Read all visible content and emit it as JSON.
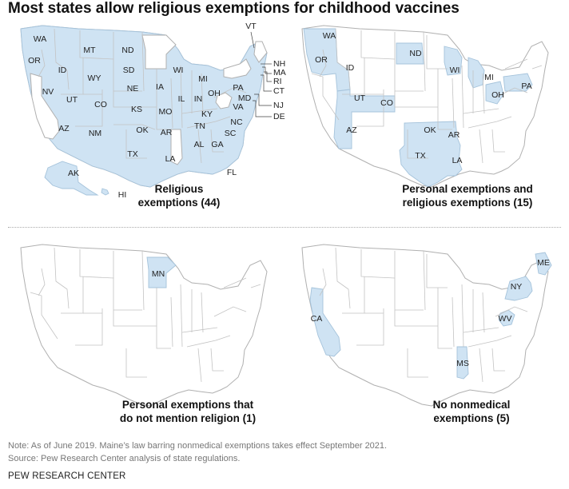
{
  "title": "Most states allow religious exemptions for childhood vaccines",
  "panels": [
    {
      "caption_line1": "Religious",
      "caption_line2": "exemptions (44)",
      "states": [
        "WA",
        "OR",
        "ID",
        "MT",
        "ND",
        "SD",
        "WY",
        "NE",
        "NV",
        "UT",
        "CO",
        "KS",
        "AZ",
        "NM",
        "OK",
        "TX",
        "IA",
        "MO",
        "AR",
        "LA",
        "WI",
        "MI",
        "IL",
        "IN",
        "OH",
        "KY",
        "TN",
        "AL",
        "GA",
        "FL",
        "SC",
        "NC",
        "VA",
        "PA",
        "MD",
        "NH",
        "MA",
        "RI",
        "CT",
        "NJ",
        "DE",
        "VT",
        "AK",
        "HI"
      ]
    },
    {
      "caption_line1": "Personal exemptions and",
      "caption_line2": "religious exemptions (15)",
      "states": [
        "WA",
        "OR",
        "ID",
        "UT",
        "CO",
        "AZ",
        "ND",
        "OK",
        "TX",
        "AR",
        "LA",
        "WI",
        "MI",
        "OH",
        "PA"
      ]
    },
    {
      "caption_line1": "Personal exemptions that",
      "caption_line2": "do not mention religion (1)",
      "states": [
        "MN"
      ]
    },
    {
      "caption_line1": "No nonmedical",
      "caption_line2": "exemptions (5)",
      "states": [
        "CA",
        "NY",
        "ME",
        "WV",
        "MS"
      ]
    }
  ],
  "note": "Note: As of June 2019. Maine’s law barring nonmedical exemptions takes effect September 2021.",
  "source": "Source: Pew Research Center analysis of state regulations.",
  "credit": "PEW RESEARCH CENTER",
  "colors": {
    "highlight": "#cfe3f3",
    "border": "#a5c3db",
    "land": "#ffffff",
    "outline": "#b0b0b0"
  }
}
